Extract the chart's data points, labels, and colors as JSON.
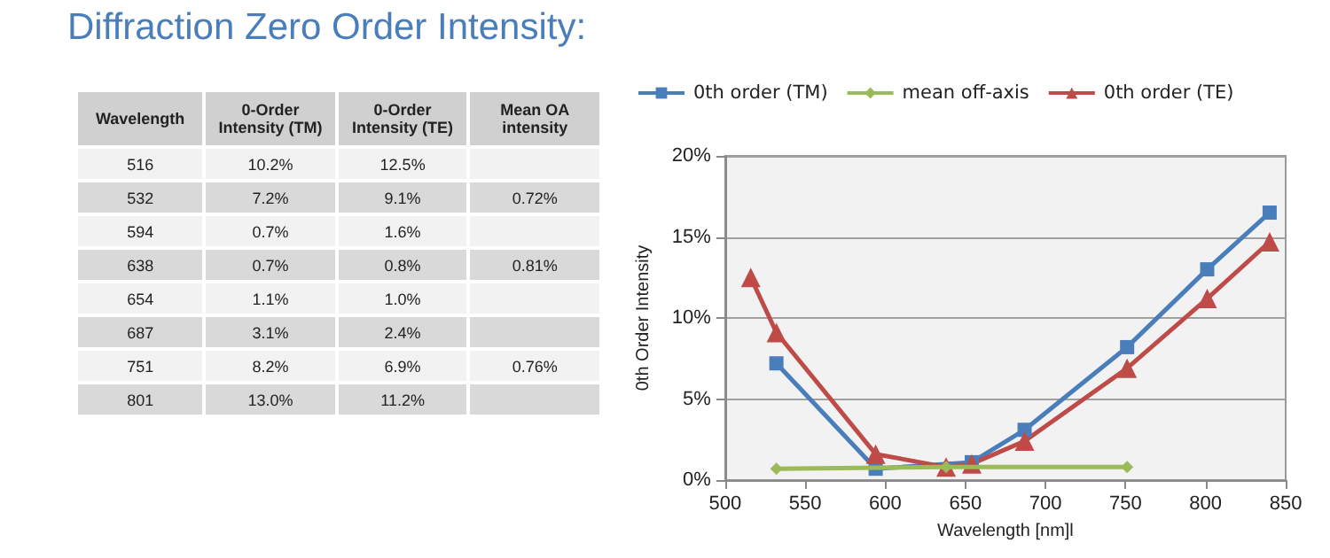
{
  "chart_data": [
    {
      "type": "other",
      "title": "Diffraction Zero Order Intensity:",
      "categories": [
        "Wavelength",
        "0-Order Intensity (TM)",
        "0-Order Intensity (TE)",
        "Mean OA intensity"
      ],
      "cell_labels": [
        [
          "516",
          "10.2%",
          "12.5%",
          null
        ],
        [
          "532",
          "7.2%",
          "9.1%",
          "0.72%"
        ],
        [
          "594",
          "0.7%",
          "1.6%",
          null
        ],
        [
          "638",
          "0.7%",
          "0.8%",
          "0.81%"
        ],
        [
          "654",
          "1.1%",
          "1.0%",
          null
        ],
        [
          "687",
          "3.1%",
          "2.4%",
          null
        ],
        [
          "751",
          "8.2%",
          "6.9%",
          "0.76%"
        ],
        [
          "801",
          "13.0%",
          "11.2%",
          null
        ]
      ]
    },
    {
      "type": "line",
      "xlabel": "Wavelength [nm]l",
      "ylabel": "0th Order Intensity",
      "xlim": [
        500,
        850
      ],
      "xticks": [
        500,
        550,
        600,
        650,
        700,
        750,
        800,
        850
      ],
      "ylim": [
        0,
        20
      ],
      "yticks": [
        {
          "value": 0,
          "label": "0%"
        },
        {
          "value": 5,
          "label": "5%"
        },
        {
          "value": 10,
          "label": "10%"
        },
        {
          "value": 15,
          "label": "15%"
        },
        {
          "value": 20,
          "label": "20%"
        }
      ],
      "grid": "y",
      "legend": "top",
      "series": [
        {
          "name": "0th order (TM)",
          "color": "#4a7ebb",
          "marker": "square",
          "x": [
            532,
            594,
            654,
            687,
            751,
            801,
            840
          ],
          "values": [
            7.2,
            0.7,
            1.1,
            3.1,
            8.2,
            13.0,
            16.5
          ]
        },
        {
          "name": "mean off-axis",
          "color": "#9bbb59",
          "marker": "diamond",
          "x": [
            532,
            638,
            751
          ],
          "values": [
            0.7,
            0.8,
            0.8
          ]
        },
        {
          "name": "0th order (TE)",
          "color": "#be4b48",
          "marker": "triangle",
          "x": [
            516,
            532,
            594,
            638,
            654,
            687,
            751,
            801,
            840
          ],
          "values": [
            12.5,
            9.1,
            1.6,
            0.8,
            1.0,
            2.4,
            6.9,
            11.2,
            14.7
          ]
        }
      ]
    }
  ]
}
